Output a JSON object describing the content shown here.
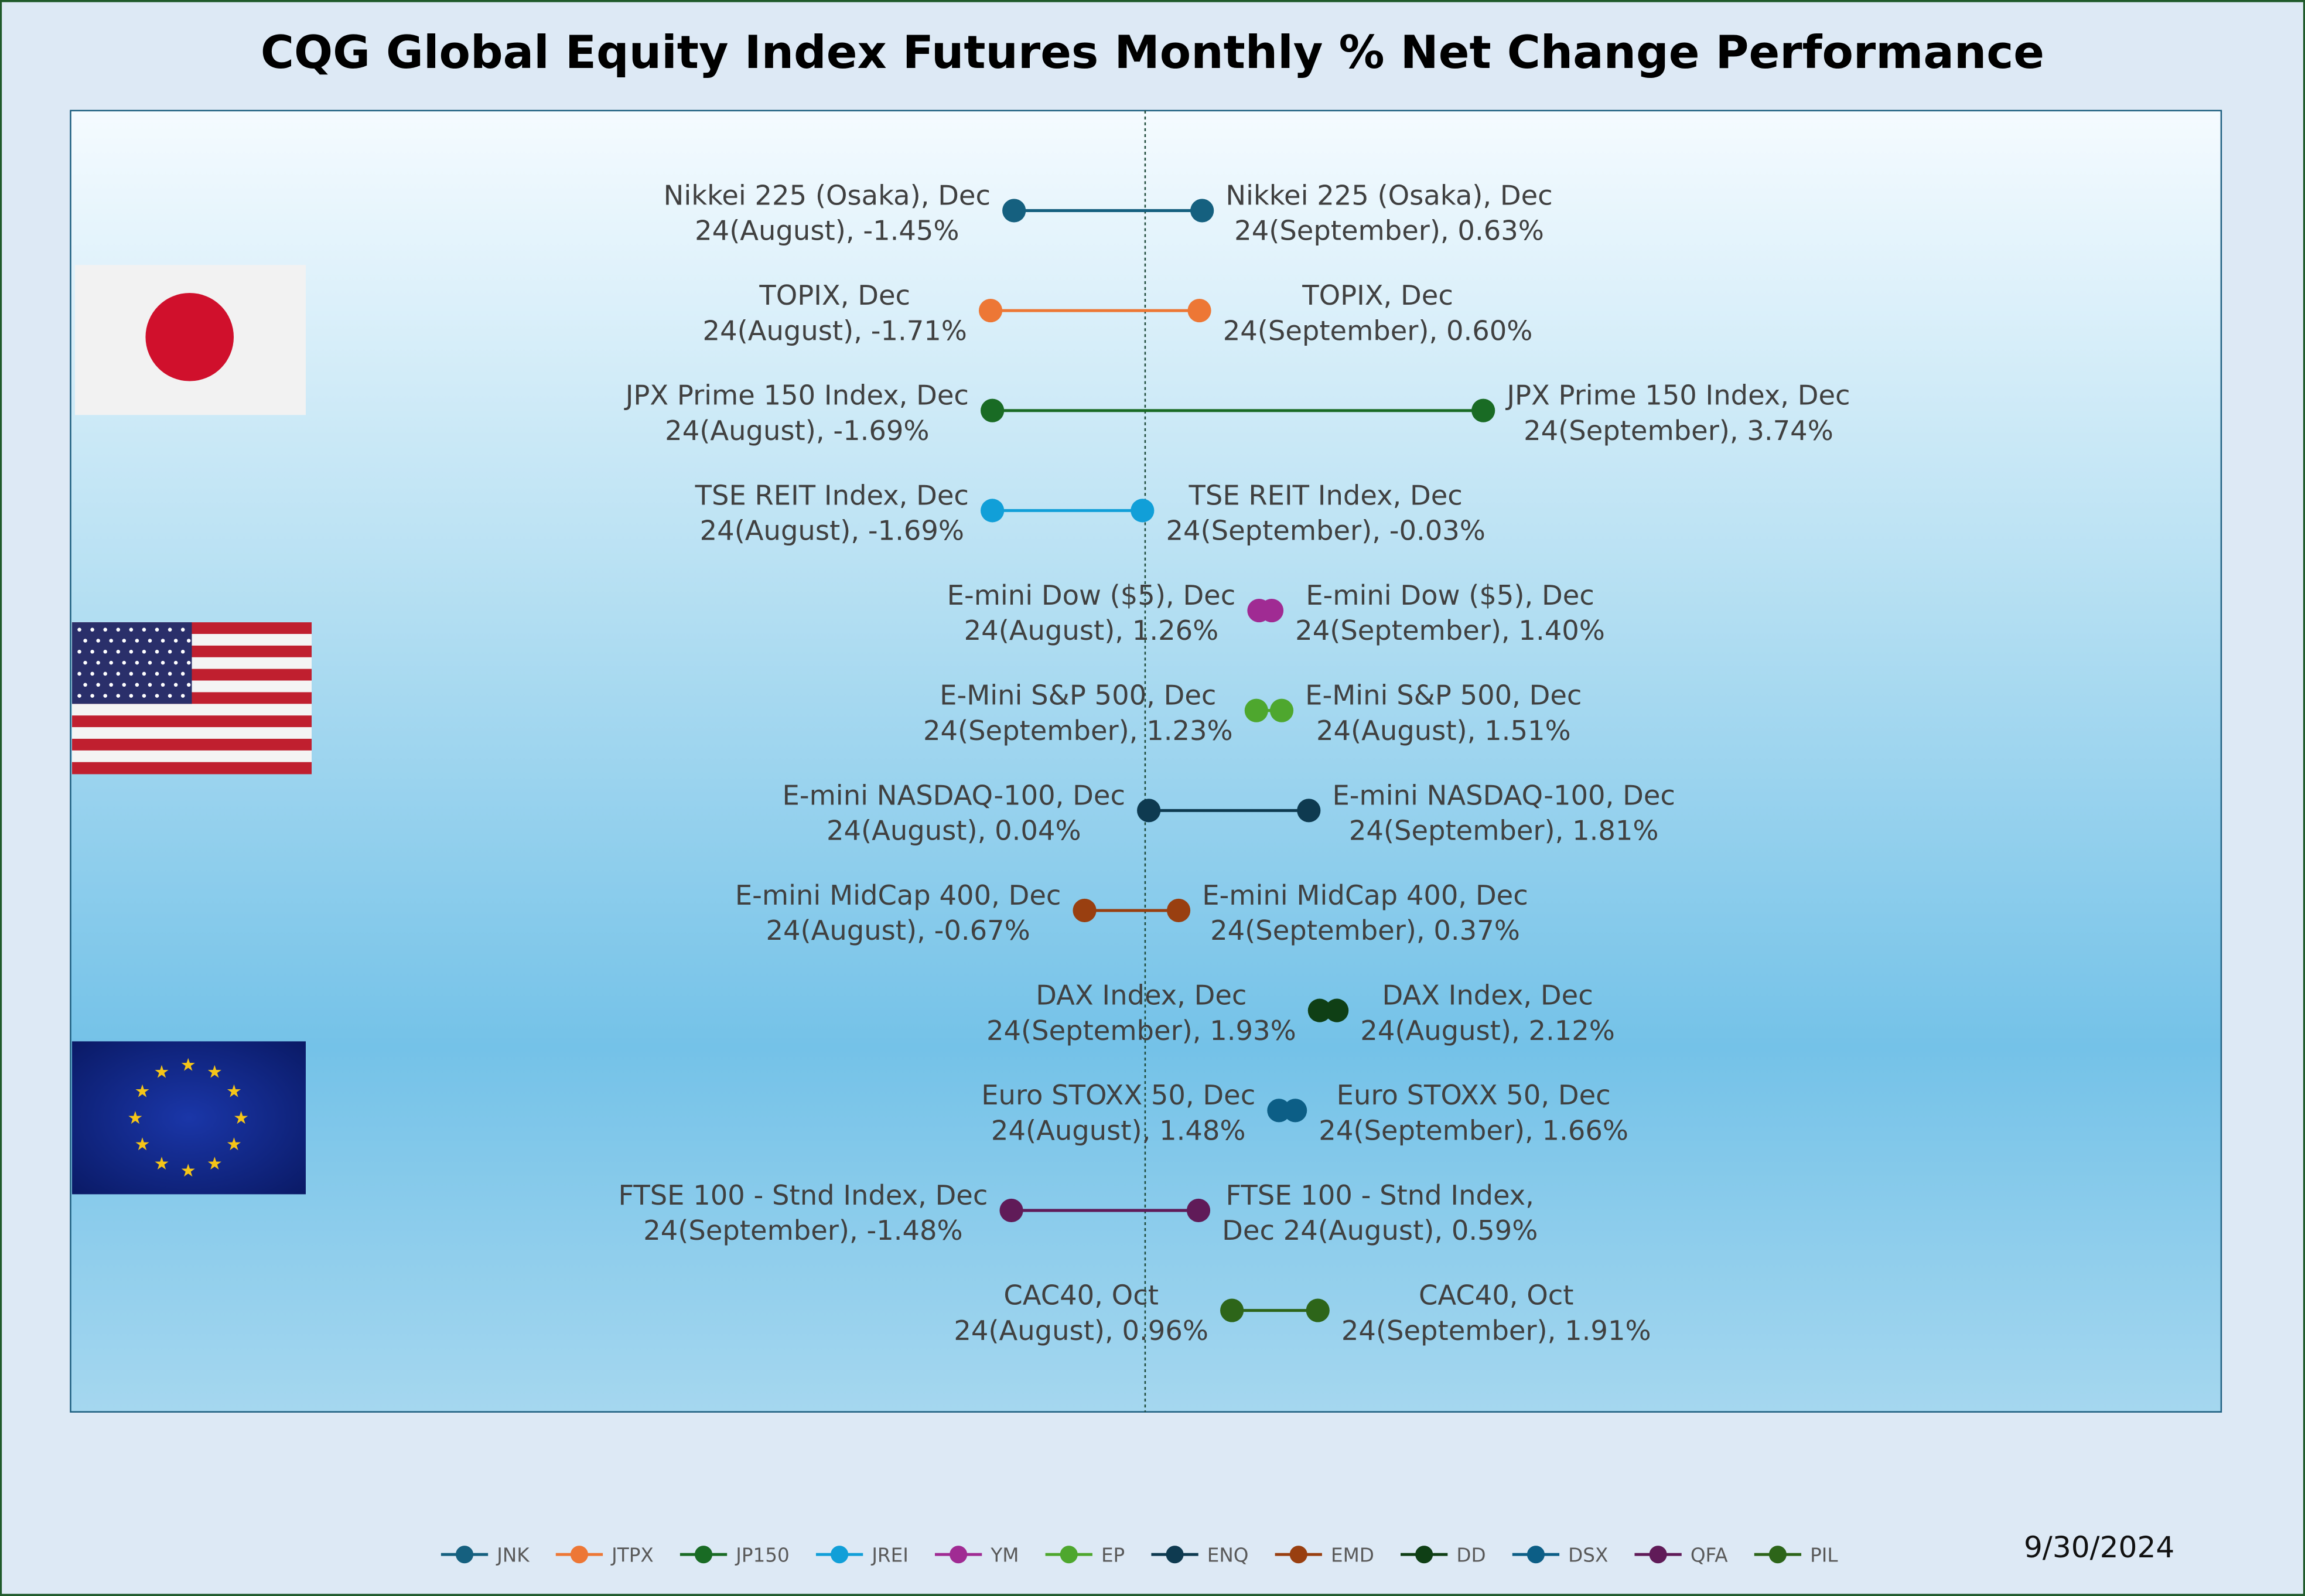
{
  "chart_data": {
    "type": "dumbbell",
    "title": "CQG Global Equity Index Futures Monthly % Net Change Performance",
    "date": "9/30/2024",
    "zero_line": 0,
    "grid": false,
    "legend_position": "bottom",
    "rows": [
      {
        "ticker": "JNK",
        "color": "#15607f",
        "values": {
          "August": -1.45,
          "September": 0.63
        },
        "left": {
          "line1": "Nikkei 225 (Osaka), Dec",
          "line2": "24(August), -1.45%"
        },
        "right": {
          "line1": "Nikkei 225 (Osaka), Dec",
          "line2": "24(September), 0.63%"
        }
      },
      {
        "ticker": "JTPX",
        "color": "#ed7735",
        "values": {
          "August": -1.71,
          "September": 0.6
        },
        "left": {
          "line1": "TOPIX, Dec",
          "line2": "24(August), -1.71%"
        },
        "right": {
          "line1": "TOPIX, Dec",
          "line2": "24(September), 0.60%"
        }
      },
      {
        "ticker": "JP150",
        "color": "#196b24",
        "values": {
          "August": -1.69,
          "September": 3.74
        },
        "left": {
          "line1": "JPX Prime 150 Index, Dec",
          "line2": "24(August), -1.69%"
        },
        "right": {
          "line1": "JPX Prime 150 Index, Dec",
          "line2": "24(September), 3.74%"
        }
      },
      {
        "ticker": "JREI",
        "color": "#119fd8",
        "values": {
          "August": -1.69,
          "September": -0.03
        },
        "left": {
          "line1": "TSE REIT Index, Dec",
          "line2": "24(August), -1.69%"
        },
        "right": {
          "line1": "TSE REIT Index, Dec",
          "line2": "24(September), -0.03%"
        }
      },
      {
        "ticker": "YM",
        "color": "#a02b93",
        "values": {
          "August": 1.26,
          "September": 1.4
        },
        "left": {
          "line1": "E-mini Dow ($5), Dec",
          "line2": "24(August), 1.26%"
        },
        "right": {
          "line1": "E-mini Dow ($5), Dec",
          "line2": "24(September), 1.40%"
        }
      },
      {
        "ticker": "EP",
        "color": "#4ea72e",
        "values": {
          "September": 1.23,
          "August": 1.51
        },
        "left": {
          "line1": "E-Mini S&P 500, Dec",
          "line2": "24(September), 1.23%"
        },
        "right": {
          "line1": "E-Mini S&P 500, Dec",
          "line2": "24(August), 1.51%"
        }
      },
      {
        "ticker": "ENQ",
        "color": "#0e3a50",
        "values": {
          "August": 0.04,
          "September": 1.81
        },
        "left": {
          "line1": "E-mini NASDAQ-100, Dec",
          "line2": "24(August), 0.04%"
        },
        "right": {
          "line1": "E-mini NASDAQ-100, Dec",
          "line2": "24(September), 1.81%"
        }
      },
      {
        "ticker": "EMD",
        "color": "#993f10",
        "values": {
          "August": -0.67,
          "September": 0.37
        },
        "left": {
          "line1": "E-mini MidCap 400, Dec",
          "line2": "24(August), -0.67%"
        },
        "right": {
          "line1": "E-mini MidCap 400, Dec",
          "line2": "24(September), 0.37%"
        }
      },
      {
        "ticker": "DD",
        "color": "#0f3f15",
        "values": {
          "September": 1.93,
          "August": 2.12
        },
        "left": {
          "line1": "DAX Index, Dec",
          "line2": "24(September), 1.93%"
        },
        "right": {
          "line1": "DAX Index, Dec",
          "line2": "24(August), 2.12%"
        }
      },
      {
        "ticker": "DSX",
        "color": "#0c5e86",
        "values": {
          "August": 1.48,
          "September": 1.66
        },
        "left": {
          "line1": "Euro STOXX 50, Dec",
          "line2": "24(August), 1.48%"
        },
        "right": {
          "line1": "Euro STOXX 50, Dec",
          "line2": "24(September), 1.66%"
        }
      },
      {
        "ticker": "QFA",
        "color": "#601b58",
        "values": {
          "September": -1.48,
          "August": 0.59
        },
        "left": {
          "line1": "FTSE 100 - Stnd Index, Dec",
          "line2": "24(September), -1.48%"
        },
        "right": {
          "line1": "FTSE 100 - Stnd Index,",
          "line2": "Dec 24(August), 0.59%"
        }
      },
      {
        "ticker": "PIL",
        "color": "#2d6519",
        "values": {
          "August": 0.96,
          "September": 1.91
        },
        "left": {
          "line1": "CAC40, Oct",
          "line2": "24(August), 0.96%"
        },
        "right": {
          "line1": "CAC40, Oct",
          "line2": "24(September), 1.91%"
        }
      }
    ],
    "flags": [
      "japan-flag",
      "usa-flag",
      "eu-flag"
    ]
  }
}
